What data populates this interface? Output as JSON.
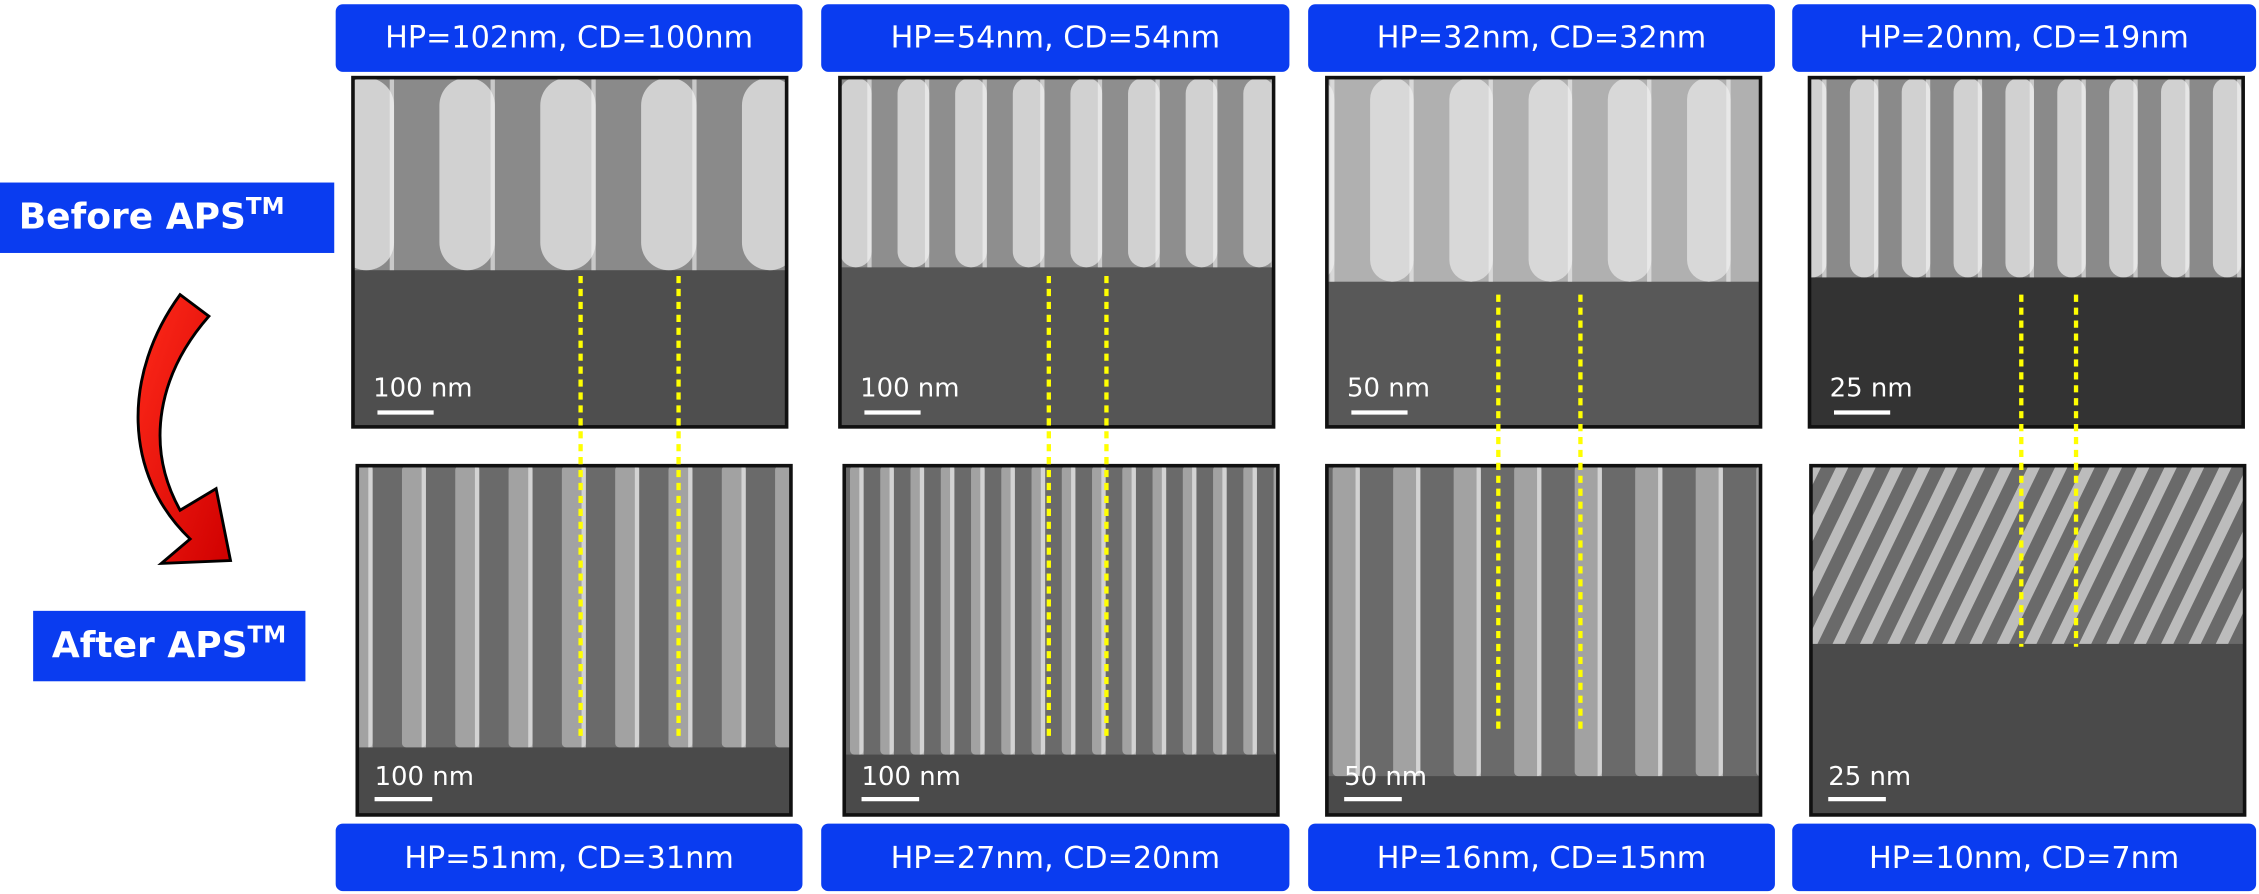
{
  "row_labels": {
    "before": {
      "text": "Before APS",
      "superscript": "TM"
    },
    "after": {
      "text": "After APS",
      "superscript": "TM"
    }
  },
  "panels": [
    {
      "top_label": "HP=102nm, CD=100nm",
      "bottom_label": "HP=51nm, CD=31nm",
      "before_scale": "100 nm",
      "after_scale": "100 nm"
    },
    {
      "top_label": "HP=54nm, CD=54nm",
      "bottom_label": "HP=27nm, CD=20nm",
      "before_scale": "100 nm",
      "after_scale": "100 nm"
    },
    {
      "top_label": "HP=32nm, CD=32nm",
      "bottom_label": "HP=16nm, CD=15nm",
      "before_scale": "50 nm",
      "after_scale": "50 nm"
    },
    {
      "top_label": "HP=20nm, CD=19nm",
      "bottom_label": "HP=10nm, CD=7nm",
      "before_scale": "25 nm",
      "after_scale": "25 nm"
    }
  ]
}
